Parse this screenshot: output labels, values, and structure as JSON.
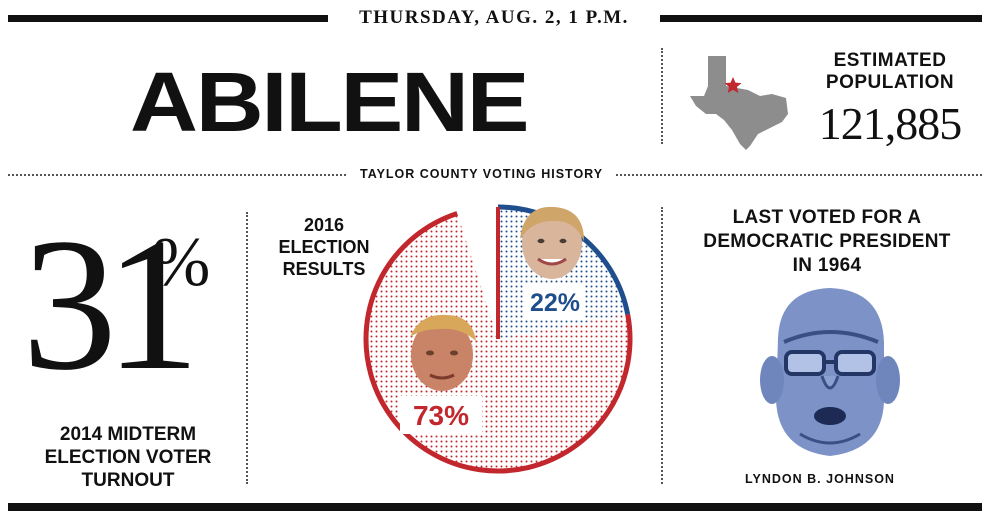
{
  "header": {
    "date_time": "THURSDAY, AUG. 2, 1 P.M.",
    "city": "ABILENE"
  },
  "population": {
    "label": "ESTIMATED POPULATION",
    "value": "121,885",
    "map_icon": "texas-map-icon"
  },
  "section": {
    "title": "TAYLOR COUNTY VOTING HISTORY"
  },
  "turnout": {
    "value": "31",
    "unit": "%",
    "label": "2014 MIDTERM ELECTION VOTER TURNOUT"
  },
  "results": {
    "label": "2016 ELECTION RESULTS",
    "slices": [
      {
        "candidate_photo": "trump-photo",
        "value": 73,
        "label": "73%",
        "color": "#c1272d"
      },
      {
        "candidate_photo": "clinton-photo",
        "value": 22,
        "label": "22%",
        "color": "#1f4e8c"
      }
    ]
  },
  "last_democrat": {
    "label": "LAST VOTED FOR A DEMOCRATIC PRESIDENT IN 1964",
    "photo": "lbj-photo",
    "name": "LYNDON B. JOHNSON"
  },
  "colors": {
    "republican": "#c1272d",
    "democrat": "#1f4e8c",
    "map_gray": "#8d8d8d",
    "star": "#c1272d"
  }
}
